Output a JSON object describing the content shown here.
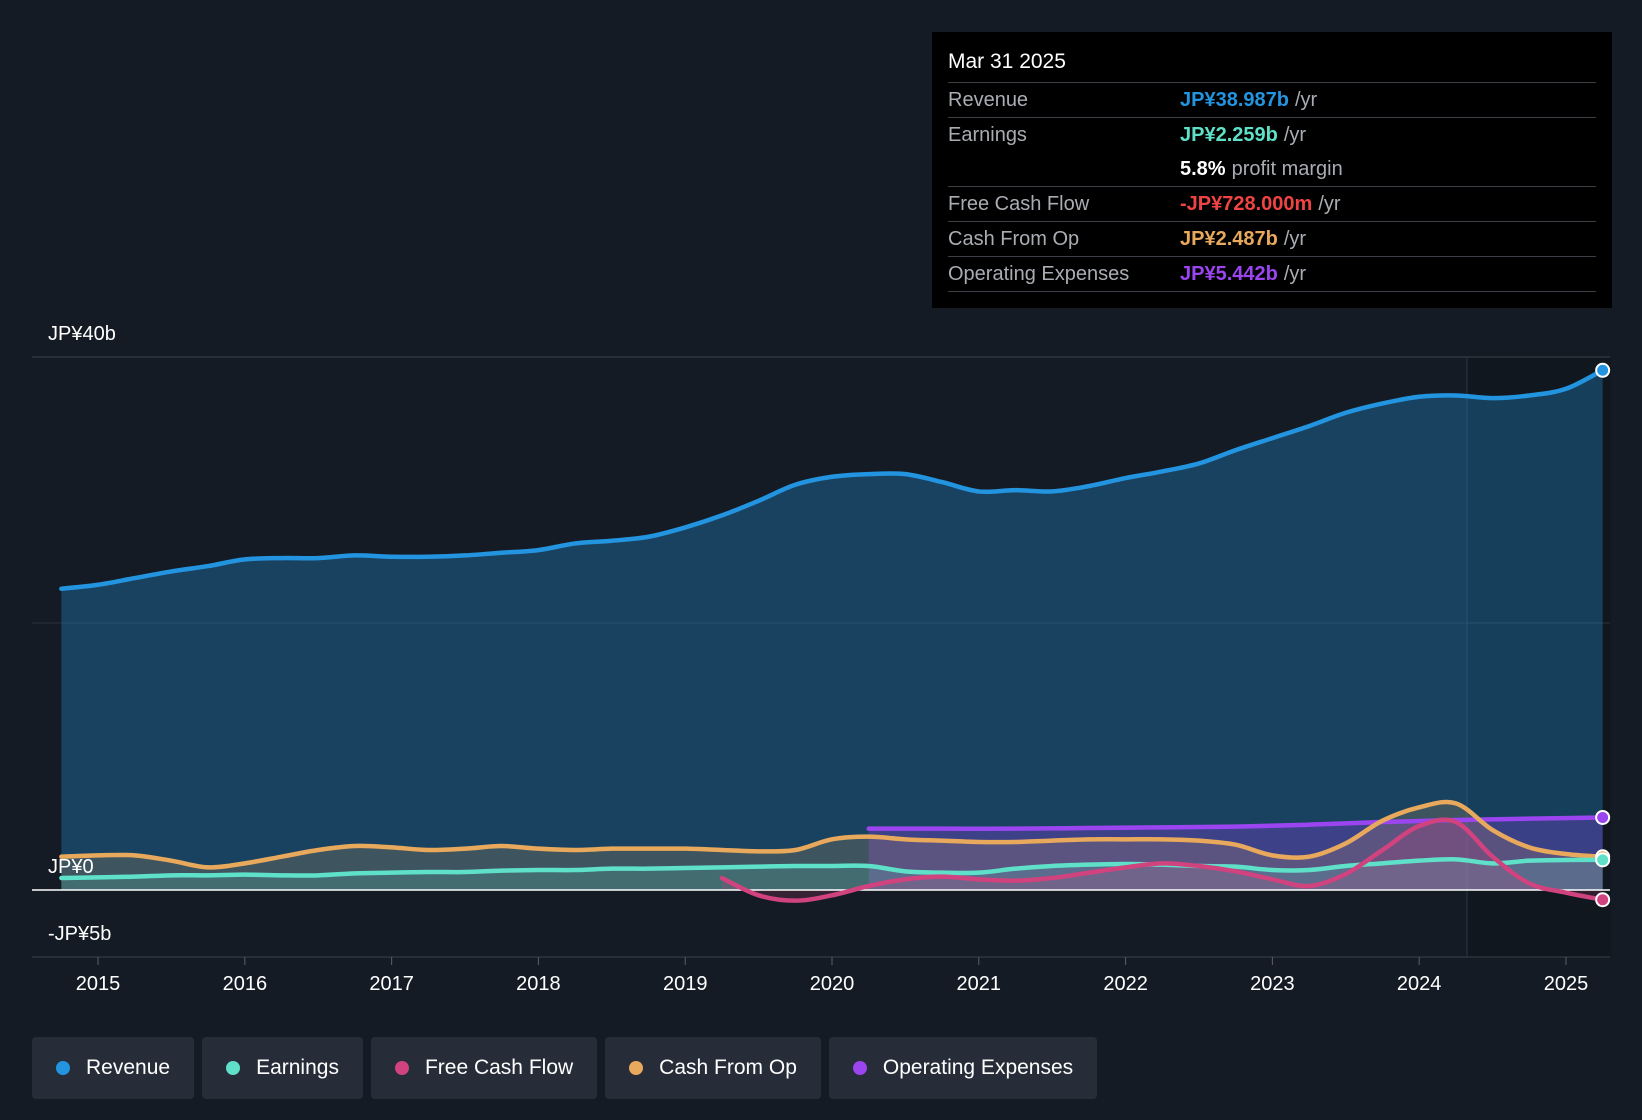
{
  "colors": {
    "revenue": "#2394e0",
    "earnings": "#5fe0c8",
    "fcf": "#d0437f",
    "cfo": "#e8a95c",
    "opex": "#9b45f0",
    "negative": "#ef4443",
    "background": "#151b24"
  },
  "tooltip": {
    "date": "Mar 31 2025",
    "rows": [
      {
        "label": "Revenue",
        "value": "JP¥38.987b",
        "unit": "/yr",
        "color": "#2394e0"
      },
      {
        "label": "Earnings",
        "value": "JP¥2.259b",
        "unit": "/yr",
        "color": "#5fe0c8"
      },
      {
        "label": "",
        "value": "5.8%",
        "unit": "profit margin",
        "color": "#ffffff"
      },
      {
        "label": "Free Cash Flow",
        "value": "-JP¥728.000m",
        "unit": "/yr",
        "color": "#ef4443"
      },
      {
        "label": "Cash From Op",
        "value": "JP¥2.487b",
        "unit": "/yr",
        "color": "#e8a95c"
      },
      {
        "label": "Operating Expenses",
        "value": "JP¥5.442b",
        "unit": "/yr",
        "color": "#9b45f0"
      }
    ]
  },
  "legend": [
    {
      "label": "Revenue",
      "color": "#2394e0"
    },
    {
      "label": "Earnings",
      "color": "#5fe0c8"
    },
    {
      "label": "Free Cash Flow",
      "color": "#d0437f"
    },
    {
      "label": "Cash From Op",
      "color": "#e8a95c"
    },
    {
      "label": "Operating Expenses",
      "color": "#9b45f0"
    }
  ],
  "chart_data": {
    "type": "line",
    "title": "",
    "xlabel": "",
    "ylabel": "",
    "xlim": [
      2014.55,
      2025.3
    ],
    "ylim": [
      -5,
      40
    ],
    "y_axis_labels": [
      "JP¥40b",
      "JP¥0",
      "-JP¥5b"
    ],
    "y_axis_values": [
      40,
      0,
      -5
    ],
    "x_ticks": [
      2015,
      2016,
      2017,
      2018,
      2019,
      2020,
      2021,
      2022,
      2023,
      2024,
      2025
    ],
    "x_tick_labels": [
      "2015",
      "2016",
      "2017",
      "2018",
      "2019",
      "2020",
      "2021",
      "2022",
      "2023",
      "2024",
      "2025"
    ],
    "highlight_start": 2024.25,
    "series": [
      {
        "name": "Revenue",
        "key": "revenue",
        "fill": true,
        "x": [
          2014.75,
          2015.0,
          2015.25,
          2015.5,
          2015.75,
          2016.0,
          2016.25,
          2016.5,
          2016.75,
          2017.0,
          2017.25,
          2017.5,
          2017.75,
          2018.0,
          2018.25,
          2018.5,
          2018.75,
          2019.0,
          2019.25,
          2019.5,
          2019.75,
          2020.0,
          2020.25,
          2020.5,
          2020.75,
          2021.0,
          2021.25,
          2021.5,
          2021.75,
          2022.0,
          2022.25,
          2022.5,
          2022.75,
          2023.0,
          2023.25,
          2023.5,
          2023.75,
          2024.0,
          2024.25,
          2024.5,
          2024.75,
          2025.0,
          2025.25
        ],
        "y": [
          22.6,
          22.9,
          23.4,
          23.9,
          24.3,
          24.8,
          24.9,
          24.9,
          25.1,
          25.0,
          25.0,
          25.1,
          25.3,
          25.5,
          26.0,
          26.2,
          26.5,
          27.2,
          28.1,
          29.2,
          30.4,
          31.0,
          31.2,
          31.2,
          30.6,
          29.9,
          30.0,
          29.9,
          30.3,
          30.9,
          31.4,
          32.0,
          33.0,
          33.9,
          34.8,
          35.8,
          36.5,
          37.0,
          37.1,
          36.9,
          37.1,
          37.6,
          38.99
        ]
      },
      {
        "name": "Operating Expenses",
        "key": "opex",
        "fill": true,
        "x": [
          2020.25,
          2020.75,
          2021.25,
          2021.75,
          2022.25,
          2022.75,
          2023.25,
          2023.75,
          2024.25,
          2024.75,
          2025.25
        ],
        "y": [
          4.6,
          4.6,
          4.6,
          4.65,
          4.7,
          4.75,
          4.9,
          5.1,
          5.25,
          5.35,
          5.44
        ]
      },
      {
        "name": "Cash From Op",
        "key": "cfo",
        "fill": true,
        "x": [
          2014.75,
          2015.0,
          2015.25,
          2015.5,
          2015.75,
          2016.0,
          2016.25,
          2016.5,
          2016.75,
          2017.0,
          2017.25,
          2017.5,
          2017.75,
          2018.0,
          2018.25,
          2018.5,
          2018.75,
          2019.0,
          2019.25,
          2019.5,
          2019.75,
          2020.0,
          2020.25,
          2020.5,
          2020.75,
          2021.0,
          2021.25,
          2021.5,
          2021.75,
          2022.0,
          2022.25,
          2022.5,
          2022.75,
          2023.0,
          2023.25,
          2023.5,
          2023.75,
          2024.0,
          2024.25,
          2024.5,
          2024.75,
          2025.0,
          2025.25
        ],
        "y": [
          2.5,
          2.6,
          2.6,
          2.2,
          1.7,
          2.0,
          2.5,
          3.0,
          3.3,
          3.2,
          3.0,
          3.1,
          3.3,
          3.1,
          3.0,
          3.1,
          3.1,
          3.1,
          3.0,
          2.9,
          3.0,
          3.8,
          4.0,
          3.8,
          3.7,
          3.6,
          3.6,
          3.7,
          3.8,
          3.8,
          3.8,
          3.7,
          3.4,
          2.6,
          2.5,
          3.5,
          5.2,
          6.2,
          6.5,
          4.5,
          3.2,
          2.7,
          2.49
        ]
      },
      {
        "name": "Earnings",
        "key": "earnings",
        "fill": true,
        "x": [
          2014.75,
          2015.0,
          2015.25,
          2015.5,
          2015.75,
          2016.0,
          2016.25,
          2016.5,
          2016.75,
          2017.0,
          2017.25,
          2017.5,
          2017.75,
          2018.0,
          2018.25,
          2018.5,
          2018.75,
          2019.0,
          2019.25,
          2019.5,
          2019.75,
          2020.0,
          2020.25,
          2020.5,
          2020.75,
          2021.0,
          2021.25,
          2021.5,
          2021.75,
          2022.0,
          2022.25,
          2022.5,
          2022.75,
          2023.0,
          2023.25,
          2023.5,
          2023.75,
          2024.0,
          2024.25,
          2024.5,
          2024.75,
          2025.0,
          2025.25
        ],
        "y": [
          0.9,
          0.95,
          1.0,
          1.1,
          1.1,
          1.15,
          1.1,
          1.1,
          1.25,
          1.3,
          1.35,
          1.35,
          1.45,
          1.5,
          1.5,
          1.6,
          1.6,
          1.65,
          1.7,
          1.75,
          1.8,
          1.8,
          1.8,
          1.4,
          1.3,
          1.3,
          1.6,
          1.8,
          1.9,
          1.95,
          1.9,
          1.8,
          1.75,
          1.5,
          1.5,
          1.8,
          2.0,
          2.2,
          2.3,
          2.0,
          2.2,
          2.25,
          2.26
        ]
      },
      {
        "name": "Free Cash Flow",
        "key": "fcf",
        "fill": true,
        "x": [
          2019.25,
          2019.5,
          2019.75,
          2020.0,
          2020.25,
          2020.5,
          2020.75,
          2021.0,
          2021.25,
          2021.5,
          2021.75,
          2022.0,
          2022.25,
          2022.5,
          2022.75,
          2023.0,
          2023.25,
          2023.5,
          2023.75,
          2024.0,
          2024.25,
          2024.5,
          2024.75,
          2025.0,
          2025.25
        ],
        "y": [
          0.9,
          -0.4,
          -0.8,
          -0.4,
          0.3,
          0.8,
          1.0,
          0.8,
          0.7,
          0.9,
          1.3,
          1.7,
          2.0,
          1.8,
          1.4,
          0.8,
          0.3,
          1.2,
          3.0,
          4.8,
          5.1,
          2.5,
          0.5,
          -0.2,
          -0.73
        ]
      }
    ]
  }
}
